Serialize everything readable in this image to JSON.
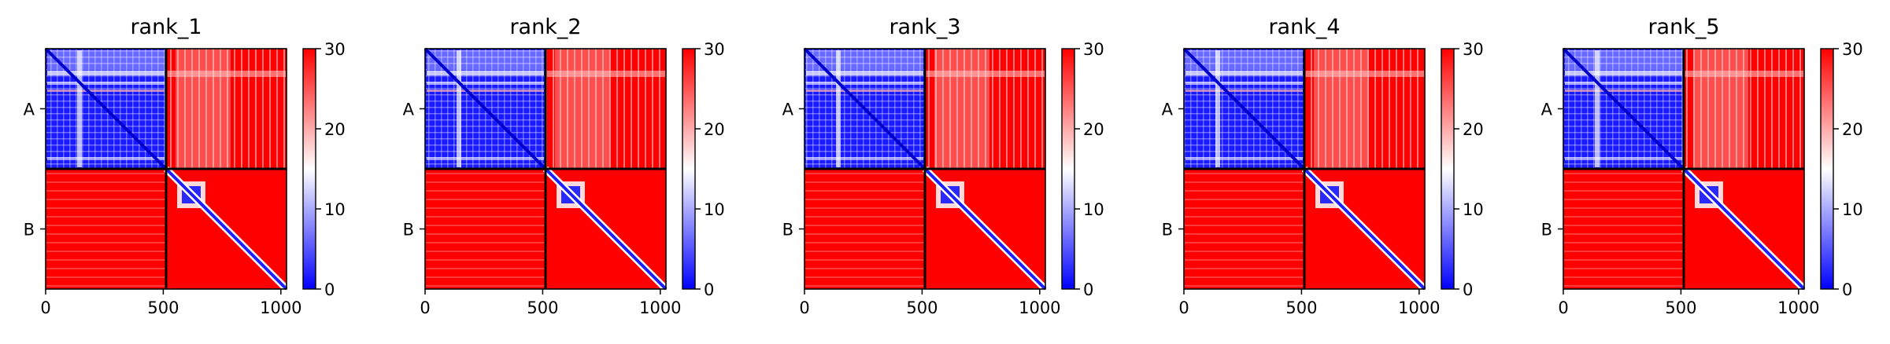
{
  "chart_data": [
    {
      "type": "heatmap",
      "title": "rank_1",
      "x": {
        "ticks": [
          0,
          500,
          1000
        ],
        "tick_labels": [
          "0",
          "500",
          "1000"
        ],
        "range": [
          0,
          1024
        ]
      },
      "y": {
        "chain_labels": [
          "A",
          "B"
        ],
        "chain_boundaries": [
          0,
          512,
          1024
        ]
      },
      "colorbar": {
        "ticks": [
          0,
          10,
          20,
          30
        ],
        "tick_labels": [
          "0",
          "10",
          "20",
          "30"
        ],
        "range": [
          0,
          30
        ],
        "colormap": [
          "#0000ff",
          "#ffffff",
          "#ff0000"
        ]
      },
      "blocks": {
        "A-A": "low (blue, ~0–10) with white striping near residues 0–200",
        "A-B": "high (red, ~25–30) with lighter streaks",
        "B-A": "high (red, ~30)",
        "B-B": "red except blue diagonal and small blue domain near residues 580–680"
      }
    },
    {
      "type": "heatmap",
      "title": "rank_2",
      "x": {
        "ticks": [
          0,
          500,
          1000
        ],
        "tick_labels": [
          "0",
          "500",
          "1000"
        ],
        "range": [
          0,
          1024
        ]
      },
      "y": {
        "chain_labels": [
          "A",
          "B"
        ],
        "chain_boundaries": [
          0,
          512,
          1024
        ]
      },
      "colorbar": {
        "ticks": [
          0,
          10,
          20,
          30
        ],
        "tick_labels": [
          "0",
          "10",
          "20",
          "30"
        ],
        "range": [
          0,
          30
        ],
        "colormap": [
          "#0000ff",
          "#ffffff",
          "#ff0000"
        ]
      }
    },
    {
      "type": "heatmap",
      "title": "rank_3",
      "x": {
        "ticks": [
          0,
          500,
          1000
        ],
        "tick_labels": [
          "0",
          "500",
          "1000"
        ],
        "range": [
          0,
          1024
        ]
      },
      "y": {
        "chain_labels": [
          "A",
          "B"
        ],
        "chain_boundaries": [
          0,
          512,
          1024
        ]
      },
      "colorbar": {
        "ticks": [
          0,
          10,
          20,
          30
        ],
        "tick_labels": [
          "0",
          "10",
          "20",
          "30"
        ],
        "range": [
          0,
          30
        ],
        "colormap": [
          "#0000ff",
          "#ffffff",
          "#ff0000"
        ]
      }
    },
    {
      "type": "heatmap",
      "title": "rank_4",
      "x": {
        "ticks": [
          0,
          500,
          1000
        ],
        "tick_labels": [
          "0",
          "500",
          "1000"
        ],
        "range": [
          0,
          1024
        ]
      },
      "y": {
        "chain_labels": [
          "A",
          "B"
        ],
        "chain_boundaries": [
          0,
          512,
          1024
        ]
      },
      "colorbar": {
        "ticks": [
          0,
          10,
          20,
          30
        ],
        "tick_labels": [
          "0",
          "10",
          "20",
          "30"
        ],
        "range": [
          0,
          30
        ],
        "colormap": [
          "#0000ff",
          "#ffffff",
          "#ff0000"
        ]
      }
    },
    {
      "type": "heatmap",
      "title": "rank_5",
      "x": {
        "ticks": [
          0,
          500,
          1000
        ],
        "tick_labels": [
          "0",
          "500",
          "1000"
        ],
        "range": [
          0,
          1024
        ]
      },
      "y": {
        "chain_labels": [
          "A",
          "B"
        ],
        "chain_boundaries": [
          0,
          512,
          1024
        ]
      },
      "colorbar": {
        "ticks": [
          0,
          10,
          20,
          30
        ],
        "tick_labels": [
          "0",
          "10",
          "20",
          "30"
        ],
        "range": [
          0,
          30
        ],
        "colormap": [
          "#0000ff",
          "#ffffff",
          "#ff0000"
        ]
      }
    }
  ]
}
